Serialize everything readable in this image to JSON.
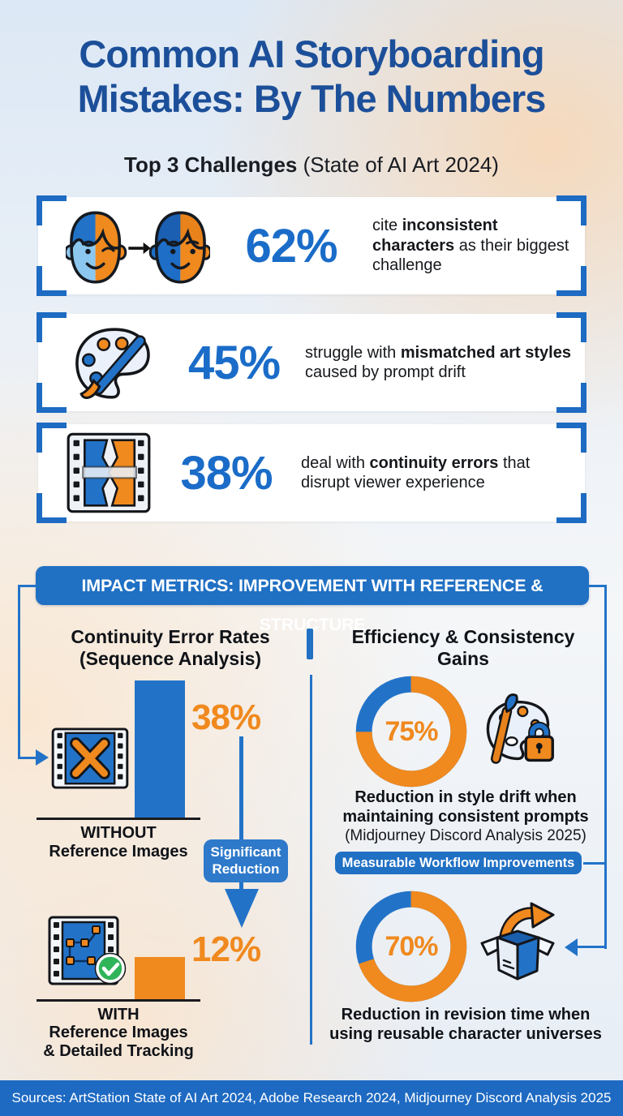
{
  "header": {
    "title_line1": "Common AI Storyboarding",
    "title_line2": "Mistakes: By The Numbers",
    "subtitle_bold": "Top 3 Challenges",
    "subtitle_rest": " (State of AI Art 2024)"
  },
  "challenges": [
    {
      "value": "62%",
      "pre": "cite ",
      "bold": "inconsistent characters",
      "post": " as their biggest challenge",
      "icon": "split-faces-icon"
    },
    {
      "value": "45%",
      "pre": "struggle with ",
      "bold": "mismatched art styles",
      "post": " caused by prompt drift",
      "icon": "paint-palette-icon"
    },
    {
      "value": "38%",
      "pre": "deal with ",
      "bold": "continuity errors",
      "post": " that disrupt viewer experience",
      "icon": "broken-filmstrip-icon"
    }
  ],
  "impact": {
    "banner": "IMPACT METRICS: IMPROVEMENT WITH REFERENCE & STRUCTURE",
    "left": {
      "heading_line1": "Continuity Error Rates",
      "heading_line2": "(Sequence Analysis)",
      "without": {
        "value": "38%",
        "pct": 38,
        "label_line1": "WITHOUT",
        "label_line2": "Reference Images"
      },
      "with": {
        "value": "12%",
        "pct": 12,
        "label_line1": "WITH",
        "label_line2": "Reference Images",
        "label_line3": "& Detailed Tracking"
      },
      "badge_line1": "Significant",
      "badge_line2": "Reduction"
    },
    "right": {
      "heading_line1": "Efficiency & Consistency",
      "heading_line2": "Gains",
      "donut1": {
        "value": "75%",
        "pct": 75,
        "caption": "Reduction in style drift when maintaining consistent prompts",
        "note": "(Midjourney Discord Analysis 2025)"
      },
      "banner": "Measurable Workflow Improvements",
      "donut2": {
        "value": "70%",
        "pct": 70,
        "caption": "Reduction in revision time when using reusable character universes"
      }
    }
  },
  "footer": {
    "sources": "Sources: ArtStation State of AI Art 2024, Adobe Research 2024, Midjourney Discord Analysis 2025"
  },
  "colors": {
    "accent_blue": "#2273c8",
    "title_navy": "#1c4f99",
    "number_blue": "#1a6cc8",
    "orange": "#f0891e",
    "banner_blue": "#2070c4",
    "badge_blue": "#2e79ca",
    "footer_blue": "#1e6ac2",
    "check_green": "#2fb45a"
  },
  "chart_data": [
    {
      "type": "bar",
      "title": "Top 3 Challenges (State of AI Art 2024)",
      "categories": [
        "inconsistent characters",
        "mismatched art styles",
        "continuity errors"
      ],
      "values": [
        62,
        45,
        38
      ],
      "unit": "%"
    },
    {
      "type": "bar",
      "title": "Continuity Error Rates (Sequence Analysis)",
      "categories": [
        "WITHOUT Reference Images",
        "WITH Reference Images & Detailed Tracking"
      ],
      "values": [
        38,
        12
      ],
      "unit": "%",
      "annotation": "Significant Reduction",
      "colors": [
        "#2273c8",
        "#f0891e"
      ]
    },
    {
      "type": "pie",
      "title": "Reduction in style drift when maintaining consistent prompts (Midjourney Discord Analysis 2025)",
      "labels": [
        "reduction",
        "remainder"
      ],
      "values": [
        75,
        25
      ]
    },
    {
      "type": "pie",
      "title": "Reduction in revision time when using reusable character universes",
      "labels": [
        "reduction",
        "remainder"
      ],
      "values": [
        70,
        30
      ]
    }
  ]
}
